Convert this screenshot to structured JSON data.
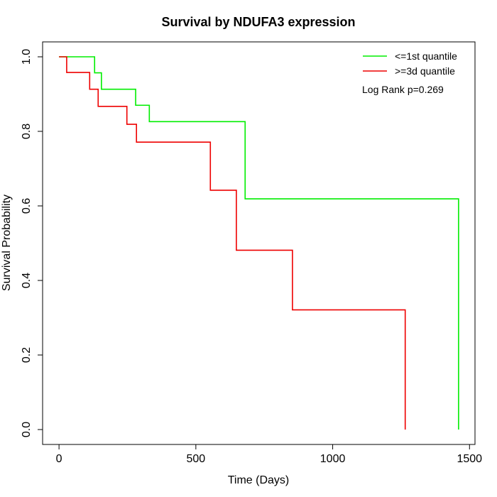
{
  "chart_data": {
    "type": "line",
    "step": true,
    "title": "Survival by NDUFA3 expression",
    "xlabel": "Time (Days)",
    "ylabel": "Survival Probability",
    "xlim": [
      -60,
      1520
    ],
    "ylim": [
      -0.04,
      1.04
    ],
    "xticks": [
      0,
      500,
      1000,
      1500
    ],
    "yticks": [
      0.0,
      0.2,
      0.4,
      0.6,
      0.8,
      1.0
    ],
    "xtick_labels": [
      "0",
      "500",
      "1000",
      "1500"
    ],
    "ytick_labels": [
      "0.0",
      "0.2",
      "0.4",
      "0.6",
      "0.8",
      "1.0"
    ],
    "legend_position": "top-right",
    "annotation": "Log Rank p=0.269",
    "series": [
      {
        "name": "<=1st quantile",
        "color": "#00ee00",
        "x": [
          0,
          130,
          155,
          280,
          330,
          680,
          1460,
          1460
        ],
        "y": [
          1.0,
          0.957,
          0.913,
          0.87,
          0.826,
          0.619,
          0.619,
          0.0
        ]
      },
      {
        "name": ">=3d quantile",
        "color": "#ee0000",
        "x": [
          0,
          28,
          112,
          143,
          248,
          283,
          553,
          648,
          853,
          1265,
          1265
        ],
        "y": [
          1.0,
          0.958,
          0.913,
          0.867,
          0.819,
          0.771,
          0.642,
          0.481,
          0.321,
          0.321,
          0.0
        ]
      }
    ]
  }
}
